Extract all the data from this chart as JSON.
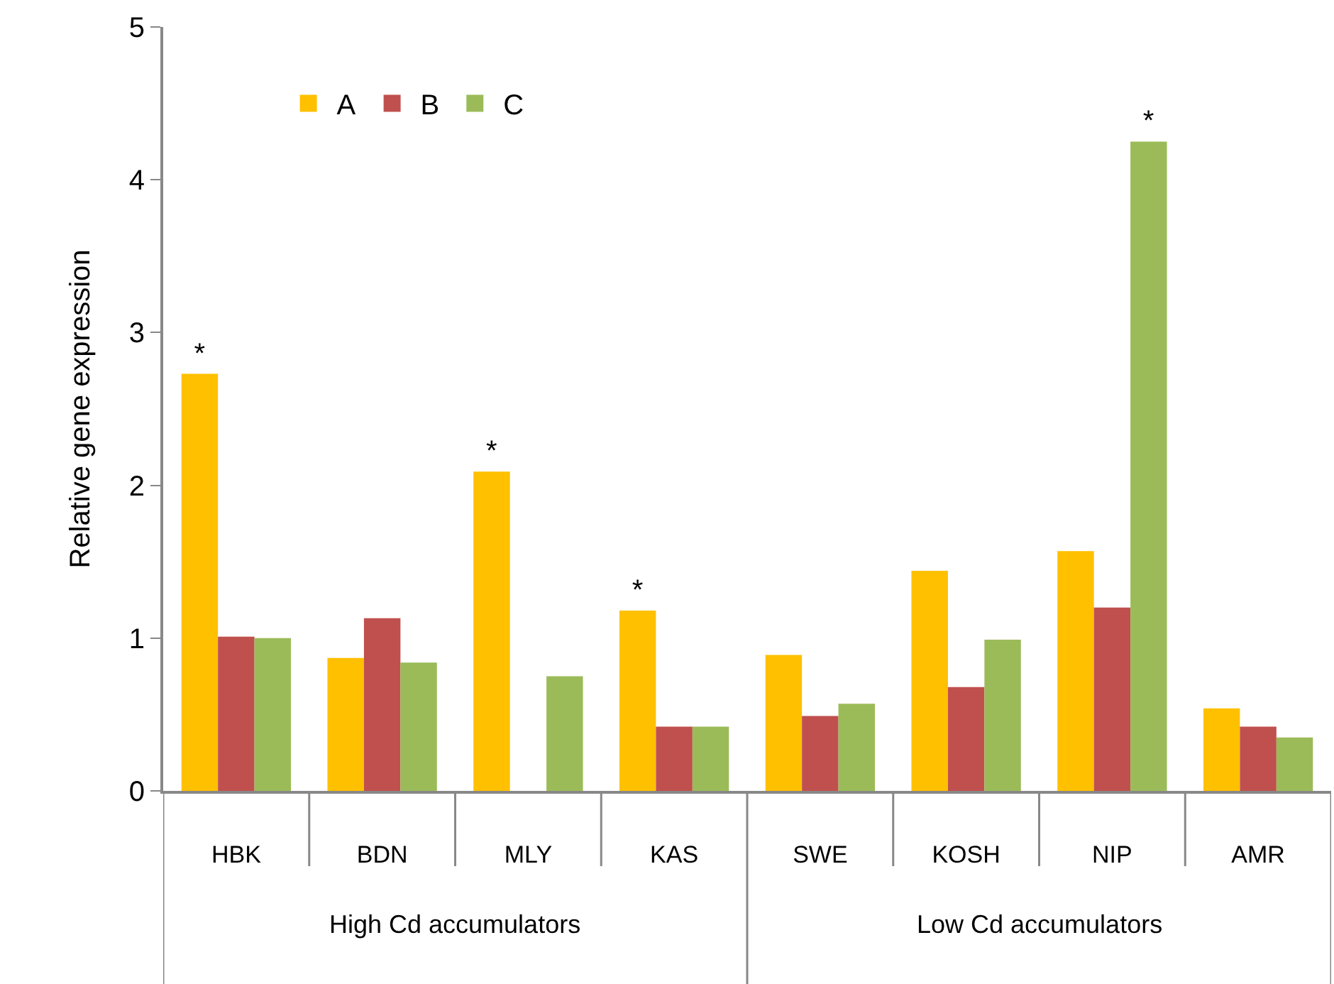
{
  "chart_data": {
    "type": "bar",
    "ylabel": "Relative gene expression",
    "categories": [
      "HBK",
      "BDN",
      "MLY",
      "KAS",
      "SWE",
      "KOSH",
      "NIP",
      "AMR"
    ],
    "series": [
      {
        "name": "A",
        "color": "#ffc000",
        "values": [
          2.73,
          0.87,
          2.09,
          1.18,
          0.89,
          1.44,
          1.57,
          0.54
        ],
        "value_labels": [
          "*",
          null,
          "*",
          "*",
          null,
          null,
          null,
          null
        ]
      },
      {
        "name": "B",
        "color": "#c0504d",
        "values": [
          1.01,
          1.13,
          null,
          0.42,
          0.49,
          0.68,
          1.2,
          0.42
        ]
      },
      {
        "name": "C",
        "color": "#9bbb59",
        "values": [
          1.0,
          0.84,
          0.75,
          0.42,
          0.57,
          0.99,
          4.25,
          0.35
        ],
        "value_labels": [
          null,
          null,
          null,
          null,
          null,
          null,
          "*",
          null
        ]
      }
    ],
    "ylim": [
      0,
      5
    ],
    "yticks": [
      0,
      1,
      2,
      3,
      4,
      5
    ],
    "grid": false,
    "legend": "top left",
    "annotations": [
      "High Cd accumulators",
      "Low Cd accumulators"
    ]
  }
}
